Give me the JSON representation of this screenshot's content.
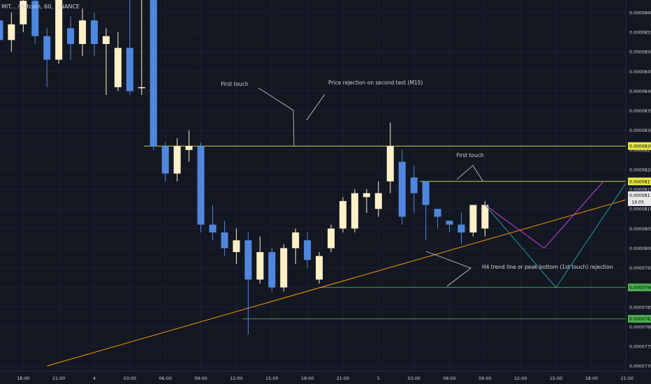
{
  "symbol_title": "MIT... / Bitcoin, 60, ...NANCE",
  "chart_data": {
    "type": "candlestick",
    "yaxis": {
      "ticks": [
        "0.0000860",
        "0.0000855",
        "0.0000850",
        "0.0000845",
        "0.0000840",
        "0.0000835",
        "0.0000830",
        "0.0000825",
        "0.0000820",
        "0.0000815",
        "0.0000810",
        "0.0000805",
        "0.0000800",
        "0.0000795",
        "0.0000790",
        "0.0000785",
        "0.0000780",
        "0.0000775",
        "0.0000770"
      ],
      "tick_values": [
        860,
        855,
        850,
        845,
        840,
        835,
        830,
        825,
        820,
        815,
        810,
        805,
        800,
        795,
        790,
        785,
        780,
        775,
        770
      ],
      "range": [
        769,
        864
      ],
      "scale_note": "values in units of 1e-7"
    },
    "xaxis": {
      "ticks": [
        "18:00",
        "21:00",
        "4",
        "03:00",
        "06:00",
        "09:00",
        "12:00",
        "15:00",
        "18:00",
        "21:00",
        "5",
        "03:00",
        "06:00",
        "09:00",
        "12:00",
        "15:00",
        "18:00",
        "21:00"
      ],
      "hours": [
        -6,
        -3,
        0,
        3,
        6,
        9,
        12,
        15,
        18,
        21,
        24,
        27,
        30,
        33,
        36,
        39,
        42,
        45
      ]
    },
    "candles": [
      {
        "t": -8,
        "o": 858,
        "c": 853,
        "h": 864,
        "l": 851
      },
      {
        "t": -7,
        "o": 853,
        "c": 857,
        "h": 860,
        "l": 850
      },
      {
        "t": -6,
        "o": 857,
        "c": 863,
        "h": 864,
        "l": 855
      },
      {
        "t": -5,
        "o": 863,
        "c": 854,
        "h": 864,
        "l": 852
      },
      {
        "t": -4,
        "o": 854,
        "c": 848,
        "h": 856,
        "l": 841
      },
      {
        "t": -3,
        "o": 848,
        "c": 864,
        "h": 864,
        "l": 847
      },
      {
        "t": -2,
        "o": 856,
        "c": 852,
        "h": 859,
        "l": 848
      },
      {
        "t": -1,
        "o": 852,
        "c": 858,
        "h": 861,
        "l": 849
      },
      {
        "t": 0,
        "o": 858,
        "c": 852,
        "h": 860,
        "l": 849
      },
      {
        "t": 1,
        "o": 852,
        "c": 854,
        "h": 856,
        "l": 839
      },
      {
        "t": 2,
        "o": 841,
        "c": 851,
        "h": 855,
        "l": 840
      },
      {
        "t": 3,
        "o": 851,
        "c": 840,
        "h": 864,
        "l": 839
      },
      {
        "t": 4,
        "o": 841,
        "c": 841,
        "h": 864,
        "l": 839
      },
      {
        "t": 5,
        "o": 864,
        "c": 826,
        "h": 864,
        "l": 825
      },
      {
        "t": 6,
        "o": 826,
        "c": 819,
        "h": 827,
        "l": 817
      },
      {
        "t": 7,
        "o": 819,
        "c": 826,
        "h": 828,
        "l": 817
      },
      {
        "t": 8,
        "o": 825,
        "c": 826,
        "h": 830,
        "l": 822
      },
      {
        "t": 9,
        "o": 826,
        "c": 806,
        "h": 827,
        "l": 804
      },
      {
        "t": 10,
        "o": 806,
        "c": 804,
        "h": 811,
        "l": 802
      },
      {
        "t": 11,
        "o": 804,
        "c": 800,
        "h": 807,
        "l": 798
      },
      {
        "t": 12,
        "o": 799,
        "c": 802,
        "h": 805,
        "l": 796
      },
      {
        "t": 13,
        "o": 802,
        "c": 792,
        "h": 804,
        "l": 778
      },
      {
        "t": 14,
        "o": 792,
        "c": 799,
        "h": 803,
        "l": 791
      },
      {
        "t": 15,
        "o": 799,
        "c": 790,
        "h": 800,
        "l": 789
      },
      {
        "t": 16,
        "o": 790,
        "c": 800,
        "h": 801,
        "l": 789
      },
      {
        "t": 17,
        "o": 800,
        "c": 804,
        "h": 805,
        "l": 796
      },
      {
        "t": 18,
        "o": 802,
        "c": 797,
        "h": 804,
        "l": 795
      },
      {
        "t": 19,
        "o": 792,
        "c": 798,
        "h": 799,
        "l": 791
      },
      {
        "t": 20,
        "o": 800,
        "c": 805,
        "h": 806,
        "l": 799
      },
      {
        "t": 21,
        "o": 805,
        "c": 812,
        "h": 813,
        "l": 804
      },
      {
        "t": 22,
        "o": 805,
        "c": 814,
        "h": 815,
        "l": 804
      },
      {
        "t": 23,
        "o": 813,
        "c": 814,
        "h": 815,
        "l": 809
      },
      {
        "t": 24,
        "o": 810,
        "c": 814,
        "h": 817,
        "l": 808
      },
      {
        "t": 25,
        "o": 817,
        "c": 826,
        "h": 832,
        "l": 814
      },
      {
        "t": 26,
        "o": 822,
        "c": 808,
        "h": 825,
        "l": 806
      },
      {
        "t": 27,
        "o": 818,
        "c": 814,
        "h": 821,
        "l": 809
      },
      {
        "t": 28,
        "o": 817,
        "c": 811,
        "h": 817,
        "l": 802
      },
      {
        "t": 29,
        "o": 810,
        "c": 808,
        "h": 810,
        "l": 805
      },
      {
        "t": 30,
        "o": 807,
        "c": 806,
        "h": 807,
        "l": 804
      },
      {
        "t": 31,
        "o": 806,
        "c": 804,
        "h": 809,
        "l": 801
      },
      {
        "t": 32,
        "o": 804,
        "c": 811,
        "h": 811,
        "l": 803
      },
      {
        "t": 33,
        "o": 805,
        "c": 811,
        "h": 812,
        "l": 803
      }
    ],
    "horizontal_lines": [
      {
        "name": "resistance-upper",
        "y": 826,
        "color": "#e8e84a",
        "label": "0.0000826"
      },
      {
        "name": "resistance-lower",
        "y": 817,
        "color": "#e8e84a",
        "label": "0.0000817"
      },
      {
        "name": "support-upper",
        "y": 790,
        "color": "#4caf50",
        "label": "0.0000790"
      },
      {
        "name": "support-lower",
        "y": 782,
        "color": "#4caf50",
        "label": "0.0000782"
      }
    ],
    "trend_line": {
      "color": "#ff9800",
      "from": [
        -4,
        770
      ],
      "to": [
        48,
        815
      ]
    },
    "current_price": {
      "label": "0.0000811",
      "countdown": "14:05",
      "y": 811
    },
    "projections": [
      {
        "name": "path-magenta",
        "color": "#e040fb",
        "points": [
          [
            33,
            811
          ],
          [
            38,
            800
          ],
          [
            43,
            817
          ]
        ]
      },
      {
        "name": "path-teal",
        "color": "#26a69a",
        "points": [
          [
            33,
            811
          ],
          [
            39,
            790
          ],
          [
            45,
            817
          ]
        ]
      }
    ],
    "annotations": [
      {
        "id": "first-touch-1",
        "text": "First touch"
      },
      {
        "id": "rejection",
        "text": "Price rejection on second test (M15)"
      },
      {
        "id": "first-touch-2",
        "text": "First touch"
      },
      {
        "id": "h4",
        "text": "H4 trend line or peak bottom (1st touch) rejection"
      }
    ],
    "colors": {
      "up": "#fff0c8",
      "down": "#4f87e0",
      "background": "#131722",
      "grid": "#1e2230",
      "text": "#d1d4dc"
    }
  }
}
